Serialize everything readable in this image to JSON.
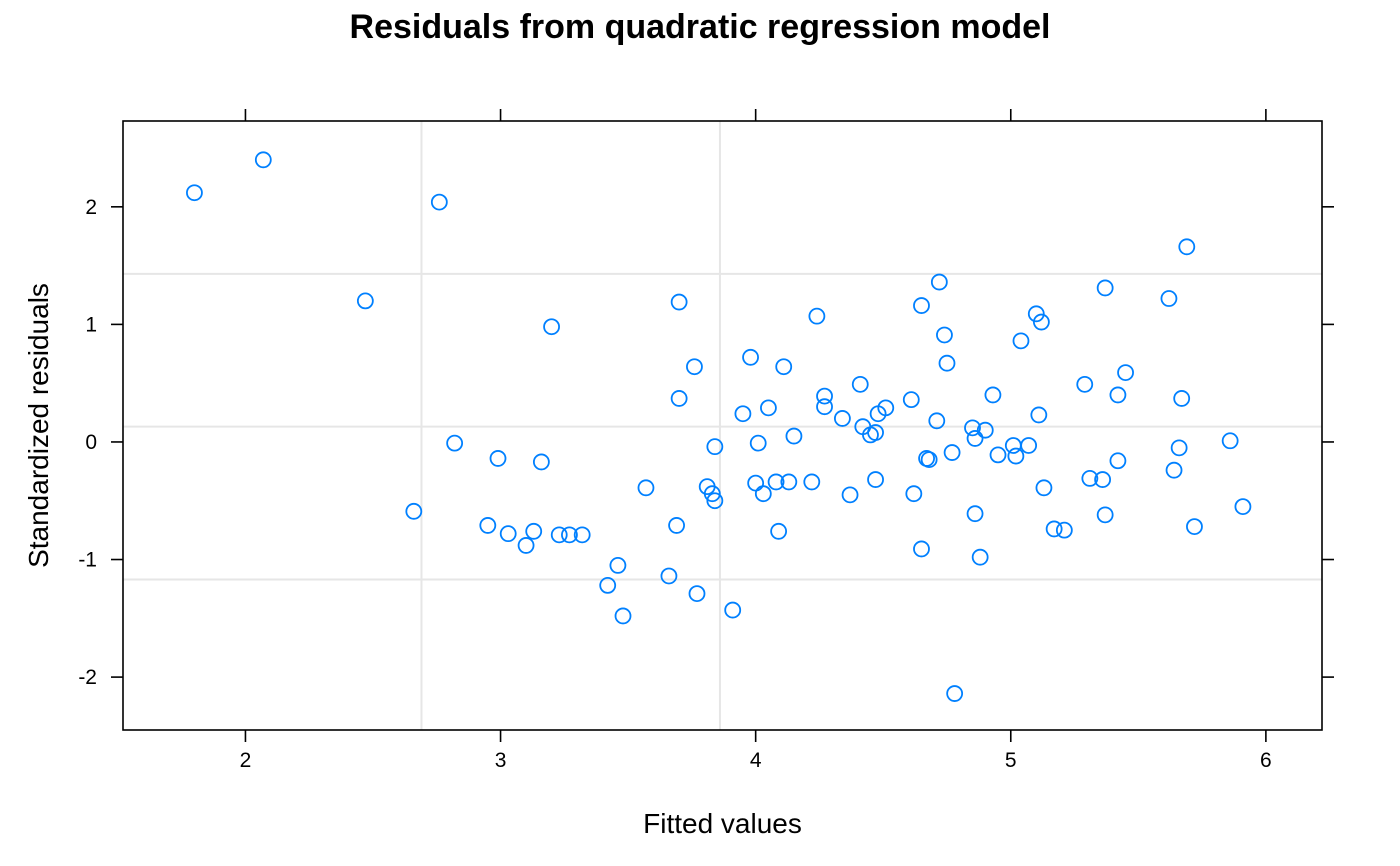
{
  "chart_data": {
    "type": "scatter",
    "title": "Residuals from quadratic regression model",
    "xlabel": "Fitted values",
    "ylabel": "Standardized residuals",
    "xlim": [
      1.52,
      6.22
    ],
    "ylim": [
      -2.45,
      2.73
    ],
    "x_ticks": [
      2,
      3,
      4,
      5,
      6
    ],
    "y_ticks": [
      -2,
      -1,
      0,
      1,
      2
    ],
    "reference_lines": {
      "vertical": [
        2.69,
        3.86
      ],
      "horizontal": [
        1.43,
        0.13,
        -1.17
      ]
    },
    "grid": false,
    "marker": {
      "shape": "open-circle",
      "color": "#0080ff"
    },
    "points": [
      {
        "x": 1.8,
        "y": 2.12
      },
      {
        "x": 2.07,
        "y": 2.4
      },
      {
        "x": 2.47,
        "y": 1.2
      },
      {
        "x": 2.66,
        "y": -0.59
      },
      {
        "x": 2.76,
        "y": 2.04
      },
      {
        "x": 2.82,
        "y": -0.01
      },
      {
        "x": 2.95,
        "y": -0.71
      },
      {
        "x": 2.99,
        "y": -0.14
      },
      {
        "x": 3.03,
        "y": -0.78
      },
      {
        "x": 3.1,
        "y": -0.88
      },
      {
        "x": 3.13,
        "y": -0.76
      },
      {
        "x": 3.16,
        "y": -0.17
      },
      {
        "x": 3.2,
        "y": 0.98
      },
      {
        "x": 3.23,
        "y": -0.79
      },
      {
        "x": 3.27,
        "y": -0.79
      },
      {
        "x": 3.32,
        "y": -0.79
      },
      {
        "x": 3.42,
        "y": -1.22
      },
      {
        "x": 3.46,
        "y": -1.05
      },
      {
        "x": 3.48,
        "y": -1.48
      },
      {
        "x": 3.57,
        "y": -0.39
      },
      {
        "x": 3.66,
        "y": -1.14
      },
      {
        "x": 3.69,
        "y": -0.71
      },
      {
        "x": 3.7,
        "y": 0.37
      },
      {
        "x": 3.7,
        "y": 1.19
      },
      {
        "x": 3.76,
        "y": 0.64
      },
      {
        "x": 3.77,
        "y": -1.29
      },
      {
        "x": 3.81,
        "y": -0.38
      },
      {
        "x": 3.83,
        "y": -0.44
      },
      {
        "x": 3.84,
        "y": -0.5
      },
      {
        "x": 3.84,
        "y": -0.04
      },
      {
        "x": 3.91,
        "y": -1.43
      },
      {
        "x": 3.95,
        "y": 0.24
      },
      {
        "x": 3.98,
        "y": 0.72
      },
      {
        "x": 4.0,
        "y": -0.35
      },
      {
        "x": 4.01,
        "y": -0.01
      },
      {
        "x": 4.03,
        "y": -0.44
      },
      {
        "x": 4.05,
        "y": 0.29
      },
      {
        "x": 4.08,
        "y": -0.34
      },
      {
        "x": 4.09,
        "y": -0.76
      },
      {
        "x": 4.11,
        "y": 0.64
      },
      {
        "x": 4.13,
        "y": -0.34
      },
      {
        "x": 4.15,
        "y": 0.05
      },
      {
        "x": 4.22,
        "y": -0.34
      },
      {
        "x": 4.24,
        "y": 1.07
      },
      {
        "x": 4.27,
        "y": 0.39
      },
      {
        "x": 4.27,
        "y": 0.3
      },
      {
        "x": 4.34,
        "y": 0.2
      },
      {
        "x": 4.37,
        "y": -0.45
      },
      {
        "x": 4.41,
        "y": 0.49
      },
      {
        "x": 4.42,
        "y": 0.13
      },
      {
        "x": 4.45,
        "y": 0.06
      },
      {
        "x": 4.47,
        "y": 0.08
      },
      {
        "x": 4.47,
        "y": -0.32
      },
      {
        "x": 4.48,
        "y": 0.24
      },
      {
        "x": 4.51,
        "y": 0.29
      },
      {
        "x": 4.61,
        "y": 0.36
      },
      {
        "x": 4.62,
        "y": -0.44
      },
      {
        "x": 4.65,
        "y": 1.16
      },
      {
        "x": 4.65,
        "y": -0.91
      },
      {
        "x": 4.67,
        "y": -0.14
      },
      {
        "x": 4.68,
        "y": -0.15
      },
      {
        "x": 4.71,
        "y": 0.18
      },
      {
        "x": 4.72,
        "y": 1.36
      },
      {
        "x": 4.74,
        "y": 0.91
      },
      {
        "x": 4.75,
        "y": 0.67
      },
      {
        "x": 4.77,
        "y": -0.09
      },
      {
        "x": 4.78,
        "y": -2.14
      },
      {
        "x": 4.85,
        "y": 0.12
      },
      {
        "x": 4.86,
        "y": -0.61
      },
      {
        "x": 4.86,
        "y": 0.03
      },
      {
        "x": 4.88,
        "y": -0.98
      },
      {
        "x": 4.9,
        "y": 0.1
      },
      {
        "x": 4.93,
        "y": 0.4
      },
      {
        "x": 4.95,
        "y": -0.11
      },
      {
        "x": 5.01,
        "y": -0.03
      },
      {
        "x": 5.02,
        "y": -0.12
      },
      {
        "x": 5.04,
        "y": 0.86
      },
      {
        "x": 5.07,
        "y": -0.03
      },
      {
        "x": 5.1,
        "y": 1.09
      },
      {
        "x": 5.11,
        "y": 0.23
      },
      {
        "x": 5.12,
        "y": 1.02
      },
      {
        "x": 5.13,
        "y": -0.39
      },
      {
        "x": 5.17,
        "y": -0.74
      },
      {
        "x": 5.21,
        "y": -0.75
      },
      {
        "x": 5.29,
        "y": 0.49
      },
      {
        "x": 5.31,
        "y": -0.31
      },
      {
        "x": 5.36,
        "y": -0.32
      },
      {
        "x": 5.37,
        "y": 1.31
      },
      {
        "x": 5.37,
        "y": -0.62
      },
      {
        "x": 5.42,
        "y": -0.16
      },
      {
        "x": 5.42,
        "y": 0.4
      },
      {
        "x": 5.45,
        "y": 0.59
      },
      {
        "x": 5.62,
        "y": 1.22
      },
      {
        "x": 5.64,
        "y": -0.24
      },
      {
        "x": 5.66,
        "y": -0.05
      },
      {
        "x": 5.67,
        "y": 0.37
      },
      {
        "x": 5.69,
        "y": 1.66
      },
      {
        "x": 5.72,
        "y": -0.72
      },
      {
        "x": 5.86,
        "y": 0.01
      },
      {
        "x": 5.91,
        "y": -0.55
      }
    ]
  }
}
